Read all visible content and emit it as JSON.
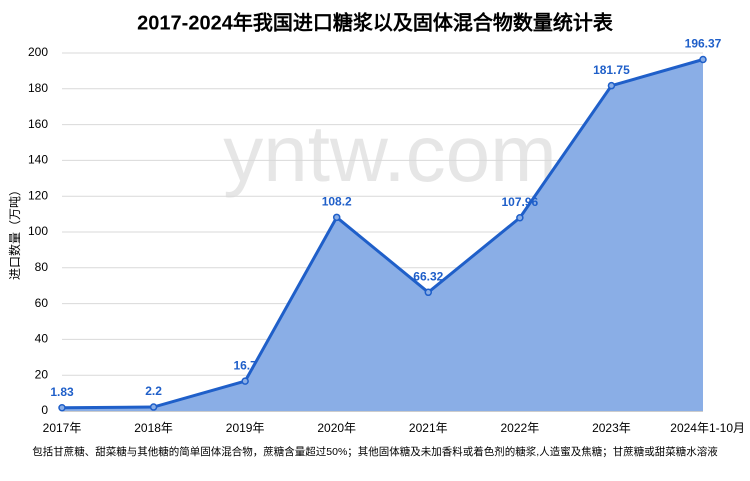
{
  "chart_data": {
    "type": "area",
    "title": "2017-2024年我国进口糖浆以及固体混合物数量统计表",
    "y_label": "进口数量（万吨）",
    "watermark": "yntw.com",
    "footnote": "包括甘蔗糖、甜菜糖与其他糖的简单固体混合物，蔗糖含量超过50%；其他固体糖及未加香料或着色剂的糖浆,人造蜜及焦糖；甘蔗糖或甜菜糖水溶液",
    "categories": [
      "2017年",
      "2018年",
      "2019年",
      "2020年",
      "2021年",
      "2022年",
      "2023年",
      "2024年1-10月"
    ],
    "values": [
      1.83,
      2.2,
      16.7,
      108.2,
      66.32,
      107.96,
      181.75,
      196.37
    ],
    "color": "#1f5fc9",
    "fill": "#8aaee6",
    "ylim": [
      0,
      200
    ],
    "yticks": [
      0,
      20,
      40,
      60,
      80,
      100,
      120,
      140,
      160,
      180,
      200
    ],
    "grid": true
  }
}
